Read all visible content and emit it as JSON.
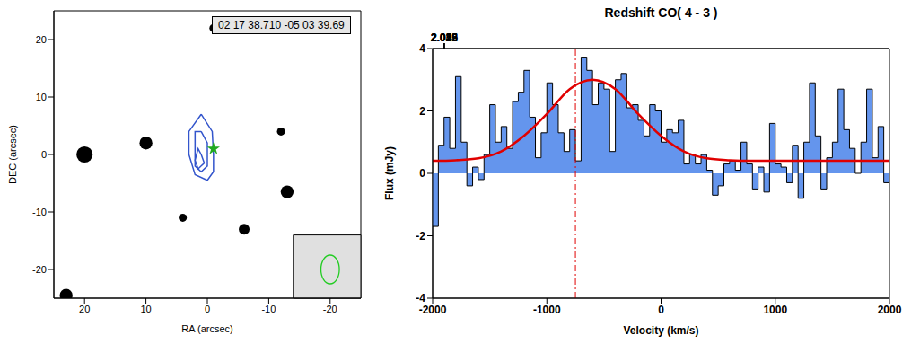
{
  "chart_data": [
    {
      "type": "scatter",
      "annotation": "02 17 38.710 -05 03 39.69",
      "x_label": "RA (arcsec)",
      "y_label": "DEC (arcsec)",
      "xlim": [
        25,
        -25
      ],
      "xticks": [
        20,
        10,
        0,
        -10,
        -20
      ],
      "ylim": [
        -25,
        25
      ],
      "yticks": [
        -20,
        -10,
        0,
        10,
        20
      ],
      "sources": {
        "color": "#000000",
        "x": [
          20,
          10,
          -13,
          -6,
          -12,
          23,
          -1,
          4
        ],
        "y": [
          0,
          2,
          -6.5,
          -13,
          4,
          -24.5,
          22,
          -11
        ],
        "size": [
          5,
          3,
          3,
          2,
          1,
          3,
          1,
          1
        ]
      },
      "contours": {
        "color": "#3355cc",
        "levels": [
          [
            {
              "x": 1,
              "y": 7
            },
            {
              "x": -0.8,
              "y": 4
            },
            {
              "x": -1,
              "y": 0
            },
            {
              "x": -1,
              "y": -3
            },
            {
              "x": 0,
              "y": -4.5
            },
            {
              "x": 2,
              "y": -3.5
            },
            {
              "x": 3,
              "y": 0
            },
            {
              "x": 3,
              "y": 4
            }
          ],
          [
            {
              "x": 1,
              "y": 4
            },
            {
              "x": 0,
              "y": 2
            },
            {
              "x": 0,
              "y": -2
            },
            {
              "x": 1,
              "y": -3
            },
            {
              "x": 2,
              "y": -2
            },
            {
              "x": 2,
              "y": 1.5
            },
            {
              "x": 2,
              "y": 4
            }
          ],
          [
            {
              "x": 1,
              "y": 0
            },
            {
              "x": 0.5,
              "y": -1.5
            },
            {
              "x": 1.5,
              "y": -2.5
            },
            {
              "x": 2,
              "y": -1
            },
            {
              "x": 1.5,
              "y": 1
            }
          ]
        ]
      },
      "position": {
        "x": -1,
        "y": 1,
        "color": "#22aa22",
        "marker": "star"
      },
      "beam_box": {
        "xlim": [
          -14,
          -25
        ],
        "ylim": [
          -25,
          -14
        ],
        "color": "#e0e0e0"
      },
      "beam": {
        "xlim": [
          -18.5,
          -21.5
        ],
        "ylim": [
          -22.5,
          -17.5
        ],
        "color": "#22cc22"
      }
    },
    {
      "type": "histogram",
      "title": "Redshift CO( 4 - 3 )",
      "x_label": "Velocity (km/s)",
      "y_label": "Flux (mJy)",
      "xlim": [
        -2000,
        2000
      ],
      "xticks": [
        -2000,
        -1000,
        0,
        1000,
        2000
      ],
      "ylim": [
        -4,
        4
      ],
      "yticks": [
        -4,
        -2,
        0,
        2,
        4
      ],
      "x2lim": [
        2.015,
        2.056
      ],
      "x2ticks": [
        2.015,
        2.029,
        2.042,
        2.056
      ],
      "color": "#6495ed",
      "bins": [
        -2000,
        -1950,
        -1900,
        -1850,
        -1800,
        -1750,
        -1700,
        -1650,
        -1600,
        -1550,
        -1500,
        -1450,
        -1400,
        -1350,
        -1300,
        -1250,
        -1200,
        -1150,
        -1100,
        -1050,
        -1000,
        -950,
        -900,
        -850,
        -800,
        -750,
        -700,
        -650,
        -600,
        -550,
        -500,
        -450,
        -400,
        -350,
        -300,
        -250,
        -200,
        -150,
        -100,
        -50,
        0,
        50,
        100,
        150,
        200,
        250,
        300,
        350,
        400,
        450,
        500,
        550,
        600,
        650,
        700,
        750,
        800,
        850,
        900,
        950,
        1000,
        1050,
        1100,
        1150,
        1200,
        1250,
        1300,
        1350,
        1400,
        1450,
        1500,
        1550,
        1600,
        1650,
        1700,
        1750,
        1800,
        1850,
        1900,
        1950,
        2000
      ],
      "counts": [
        -1.7,
        0.9,
        1.8,
        0.8,
        3.1,
        1.0,
        -0.4,
        0.2,
        -0.2,
        0.6,
        2.2,
        1.0,
        1.5,
        0.8,
        2.3,
        2.6,
        3.3,
        1.8,
        0.5,
        1.3,
        2.9,
        2.2,
        1.3,
        0.7,
        1.4,
        0.4,
        3.7,
        3.3,
        2.2,
        2.9,
        2.7,
        0.7,
        3.0,
        3.2,
        2.1,
        2.2,
        1.7,
        1.2,
        2.2,
        2.0,
        1.0,
        1.4,
        1.3,
        1.7,
        0.3,
        0.6,
        0.3,
        0.6,
        0.1,
        -0.7,
        -0.4,
        0.3,
        0.4,
        0.1,
        1.0,
        0.3,
        -0.5,
        0.2,
        -0.6,
        1.6,
        0.3,
        0.2,
        -0.3,
        0.9,
        -0.8,
        1.0,
        2.9,
        1.2,
        -0.5,
        0.5,
        1.0,
        2.7,
        1.4,
        0.8,
        0.0,
        1.0,
        2.7,
        0.5,
        1.5,
        -0.3
      ],
      "fit": {
        "color": "#e00000",
        "x": [
          -2000,
          -1800,
          -1600,
          -1400,
          -1200,
          -1000,
          -800,
          -600,
          -400,
          -200,
          0,
          200,
          400,
          600,
          800,
          1000,
          1200,
          1400,
          1600,
          1800,
          2000
        ],
        "values": [
          0.4,
          0.42,
          0.48,
          0.7,
          1.2,
          1.9,
          2.7,
          3.0,
          2.7,
          1.9,
          1.2,
          0.7,
          0.48,
          0.42,
          0.4,
          0.4,
          0.4,
          0.4,
          0.4,
          0.4,
          0.4
        ]
      },
      "reference_line": {
        "x": -750,
        "color": "#e00000",
        "line_style": "dashdot"
      }
    }
  ]
}
